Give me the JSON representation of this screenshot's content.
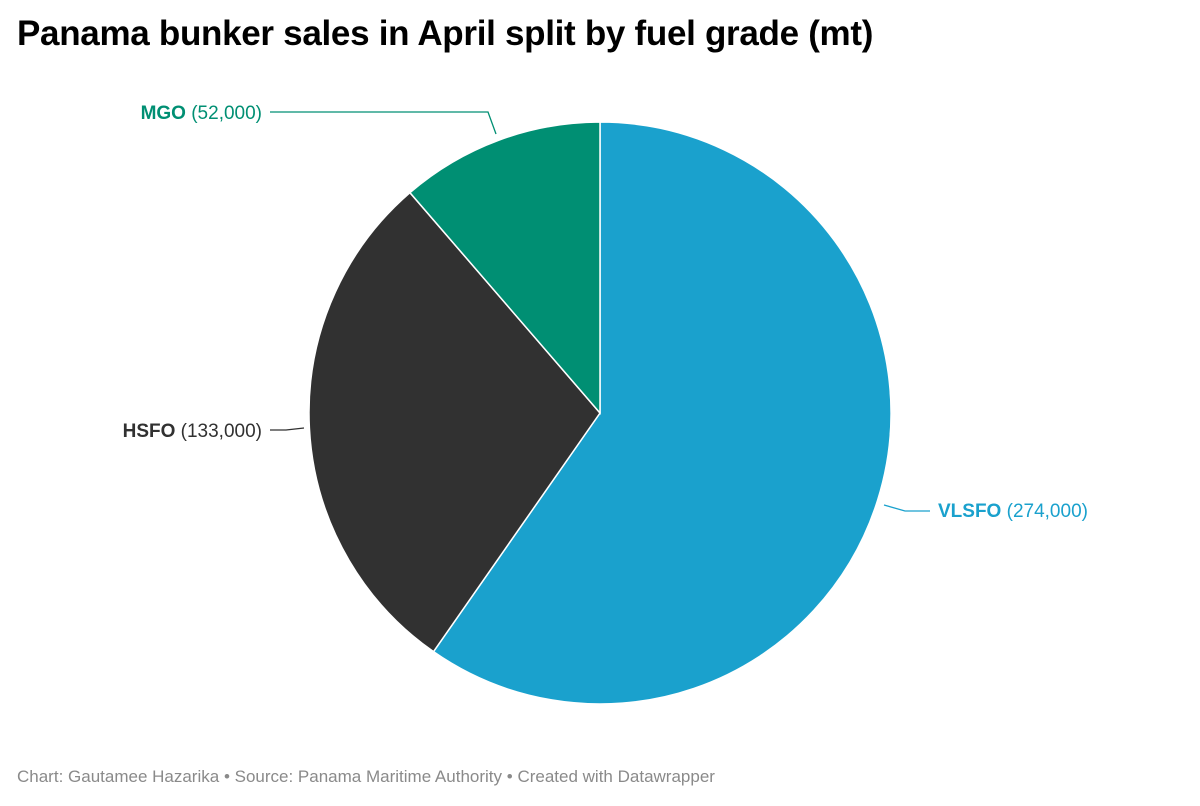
{
  "title": "Panama bunker sales in April split by fuel grade (mt)",
  "footer": {
    "credit": "Chart: Gautamee Hazarika",
    "separator": "•",
    "source": "Source: Panama Maritime Authority",
    "tool": "Created with Datawrapper"
  },
  "chart_data": {
    "type": "pie",
    "title": "Panama bunker sales in April split by fuel grade (mt)",
    "slices": [
      {
        "label": "VLSFO",
        "value": 274000,
        "value_text": "(274,000)",
        "color": "#1aa1cd"
      },
      {
        "label": "HSFO",
        "value": 133000,
        "value_text": "(133,000)",
        "color": "#313131"
      },
      {
        "label": "MGO",
        "value": 52000,
        "value_text": "(52,000)",
        "color": "#008f73"
      }
    ],
    "start": "12 o'clock",
    "direction": "clockwise",
    "labels": "outside with leader lines"
  }
}
